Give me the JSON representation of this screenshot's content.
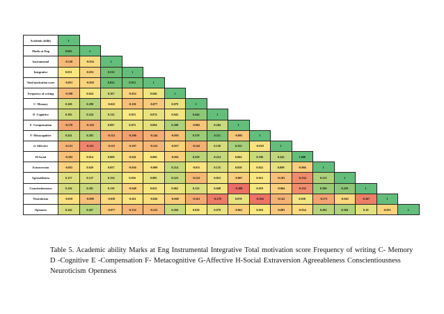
{
  "table": {
    "rows": [
      {
        "label": "Academic ability",
        "values": [
          "1"
        ]
      },
      {
        "label": "Marks at Eng",
        "values": [
          "0.692",
          "1"
        ]
      },
      {
        "label": "Instrumental",
        "values": [
          "-0.120",
          "-0.034",
          "1"
        ]
      },
      {
        "label": "Integrative",
        "values": [
          "0.011",
          "-0.051",
          "0.532",
          "1"
        ]
      },
      {
        "label": "Total motivation score",
        "values": [
          "-0.051",
          "-0.050",
          "0.822",
          "0.912",
          "1"
        ]
      },
      {
        "label": "Frequency of writing",
        "values": [
          "-0.108",
          "0.024",
          "0.167",
          "-0.052",
          "0.046",
          "1"
        ]
      },
      {
        "label": "C- Memory",
        "values": [
          "0.169",
          "0.290",
          "-0.022",
          "-0.101",
          "-0.077",
          "0.079",
          "1"
        ]
      },
      {
        "label": "D -Cognitive",
        "values": [
          "0.182",
          "0.224",
          "0.132",
          "0.015",
          "0.074",
          "0.043",
          "0.444",
          "1"
        ]
      },
      {
        "label": "E -Compensation",
        "values": [
          "-0.170",
          "-0.150",
          "0.097",
          "0.072",
          "0.094",
          "0.308",
          "-0.092",
          "0.204",
          "1"
        ]
      },
      {
        "label": "F- Metacognitive",
        "values": [
          "0.241",
          "0.283",
          "-0.152",
          "-0.186",
          "-0.144",
          "-0.095",
          "0.379",
          "0.511",
          "-0.085",
          "1"
        ]
      },
      {
        "label": "G-Affective",
        "values": [
          "-0.131",
          "-0.251",
          "-0.115",
          "-0.107",
          "-0.125",
          "-0.057",
          "-0.143",
          "0.158",
          "0.332",
          "-0.018",
          "1"
        ]
      },
      {
        "label": "H-Social",
        "values": [
          "-0.102",
          "0.014",
          "0.069",
          "-0.041",
          "0.006",
          "-0.061",
          "0.259",
          "0.214",
          "0.062",
          "0.196",
          "0.242",
          "1.000"
        ]
      },
      {
        "label": "Extraversion",
        "values": [
          "-0.055",
          "0.029",
          "0.057",
          "-0.056",
          "-0.009",
          "0.214",
          "-0.011",
          "0.135",
          "0.059",
          "0.022",
          "0.099",
          "-0.066",
          "1"
        ]
      },
      {
        "label": "Agreeableness",
        "values": [
          "0.117",
          "0.127",
          "0.154",
          "0.016",
          "0.085",
          "0.223",
          "-0.123",
          "0.053",
          "-0.067",
          "0.012",
          "-0.103",
          "-0.234",
          "0.313",
          "1"
        ]
      },
      {
        "label": "Conscientiousness",
        "values": [
          "0.156",
          "0.201",
          "0.110",
          "-0.048",
          "0.022",
          "0.062",
          "0.122",
          "0.048",
          "-0.308",
          "0.019",
          "-0.064",
          "-0.232",
          "0.396",
          "0.439",
          "1"
        ]
      },
      {
        "label": "Neuroticism",
        "values": [
          "-0.019",
          "-0.098",
          "-0.039",
          "-0.011",
          "-0.026",
          "-0.068",
          "-0.161",
          "-0.278",
          "0.078",
          "-0.294",
          "-0.141",
          "0.038",
          "-0.173",
          "-0.043",
          "-0.267",
          "1"
        ]
      },
      {
        "label": "Openness",
        "values": [
          "0.142",
          "0.267",
          "-0.077",
          "-0.132",
          "-0.125",
          "0.204",
          "0.030",
          "0.078",
          "-0.061",
          "0.016",
          "-0.083",
          "-0.034",
          "0.282",
          "0.304",
          "0.10",
          "-0.051",
          "1"
        ]
      }
    ]
  },
  "caption": "Table 5. Academic ability    Marks at Eng   Instrumental     Integrative     Total motivation score Frequency of writing    C- Memory    D -Cognitive    E -Compensation    F- Metacognitive    G-Affective     H-Social    Extraversion Agreeableness Conscientiousness  Neuroticism Openness"
}
